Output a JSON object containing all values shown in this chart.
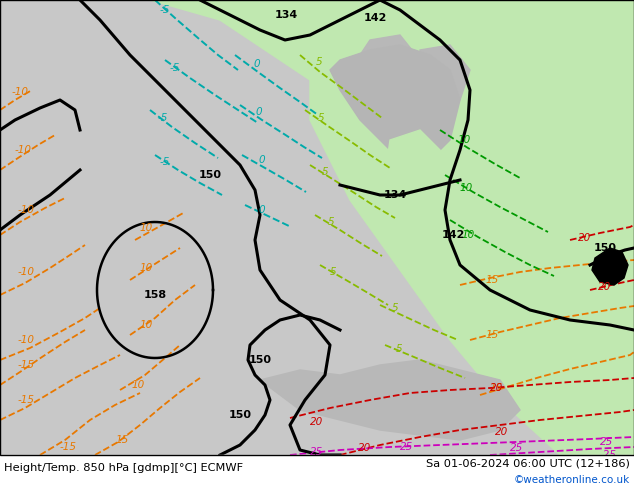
{
  "title_left": "Height/Temp. 850 hPa [gdmp][°C] ECMWF",
  "title_right": "Sa 01-06-2024 06:00 UTC (12+186)",
  "watermark": "©weatheronline.co.uk",
  "gray_color": "#c8c8c8",
  "green_color": "#c0e8b0",
  "white_color": "#ffffff",
  "black": "#000000",
  "orange": "#e87800",
  "red": "#cc0000",
  "magenta": "#cc00bb",
  "cyan": "#00aaaa",
  "yellow_green": "#88bb00",
  "dark_green": "#009900"
}
